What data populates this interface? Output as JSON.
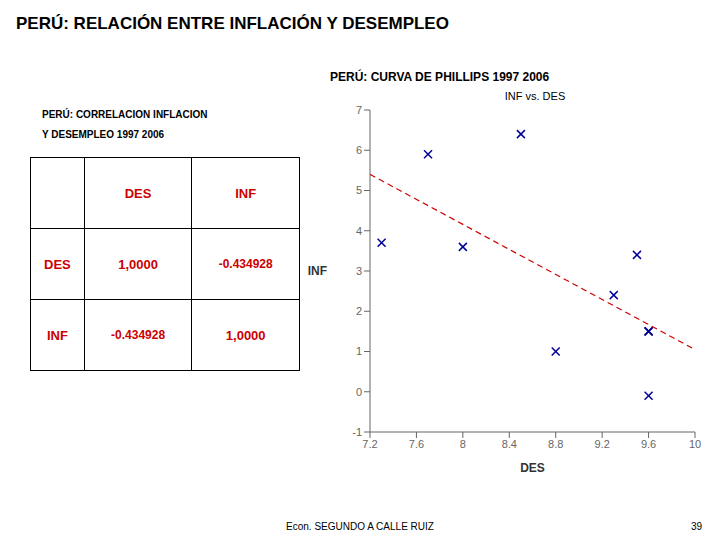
{
  "title": "PERÚ: RELACIÓN ENTRE INFLACIÓN Y DESEMPLEO",
  "annotations": [
    "Econ. SEGUNDO A  CALLE RUIZ",
    "39"
  ],
  "chart_data": [
    {
      "type": "table",
      "title": [
        "PERÚ: CORRELACION INFLACION",
        "Y DESEMPLEO 1997 2006"
      ],
      "columns": [
        "DES",
        "INF"
      ],
      "rows": [
        "DES",
        "INF"
      ],
      "cells": [
        [
          "1,0000",
          "-0.434928"
        ],
        [
          "-0.434928",
          "1,0000"
        ]
      ],
      "color": "#CC0000"
    },
    {
      "type": "scatter",
      "title": "PERÚ: CURVA DE PHILLIPS 1997 2006",
      "subtitle": "INF vs. DES",
      "xlabel": "DES",
      "ylabel": "INF",
      "xlim": [
        7.2,
        10
      ],
      "ylim": [
        -1,
        7
      ],
      "xticks": [
        7.2,
        7.6,
        8,
        8.4,
        8.8,
        9.2,
        9.6,
        10
      ],
      "yticks": [
        -1,
        0,
        1,
        2,
        3,
        4,
        5,
        6,
        7
      ],
      "grid": false,
      "series": [
        {
          "type": "scatter",
          "marker": "x",
          "color": "#000099",
          "x": [
            7.3,
            7.7,
            8.0,
            8.5,
            8.8,
            9.3,
            9.5,
            9.6,
            9.6,
            9.6
          ],
          "values": [
            3.7,
            5.9,
            3.6,
            6.4,
            1.0,
            2.4,
            3.4,
            1.5,
            1.5,
            -0.1
          ]
        },
        {
          "type": "line",
          "line_style": "dashed",
          "color": "#CC0000",
          "x": [
            7.2,
            10
          ],
          "values": [
            5.4017,
            1.049
          ]
        }
      ]
    }
  ]
}
